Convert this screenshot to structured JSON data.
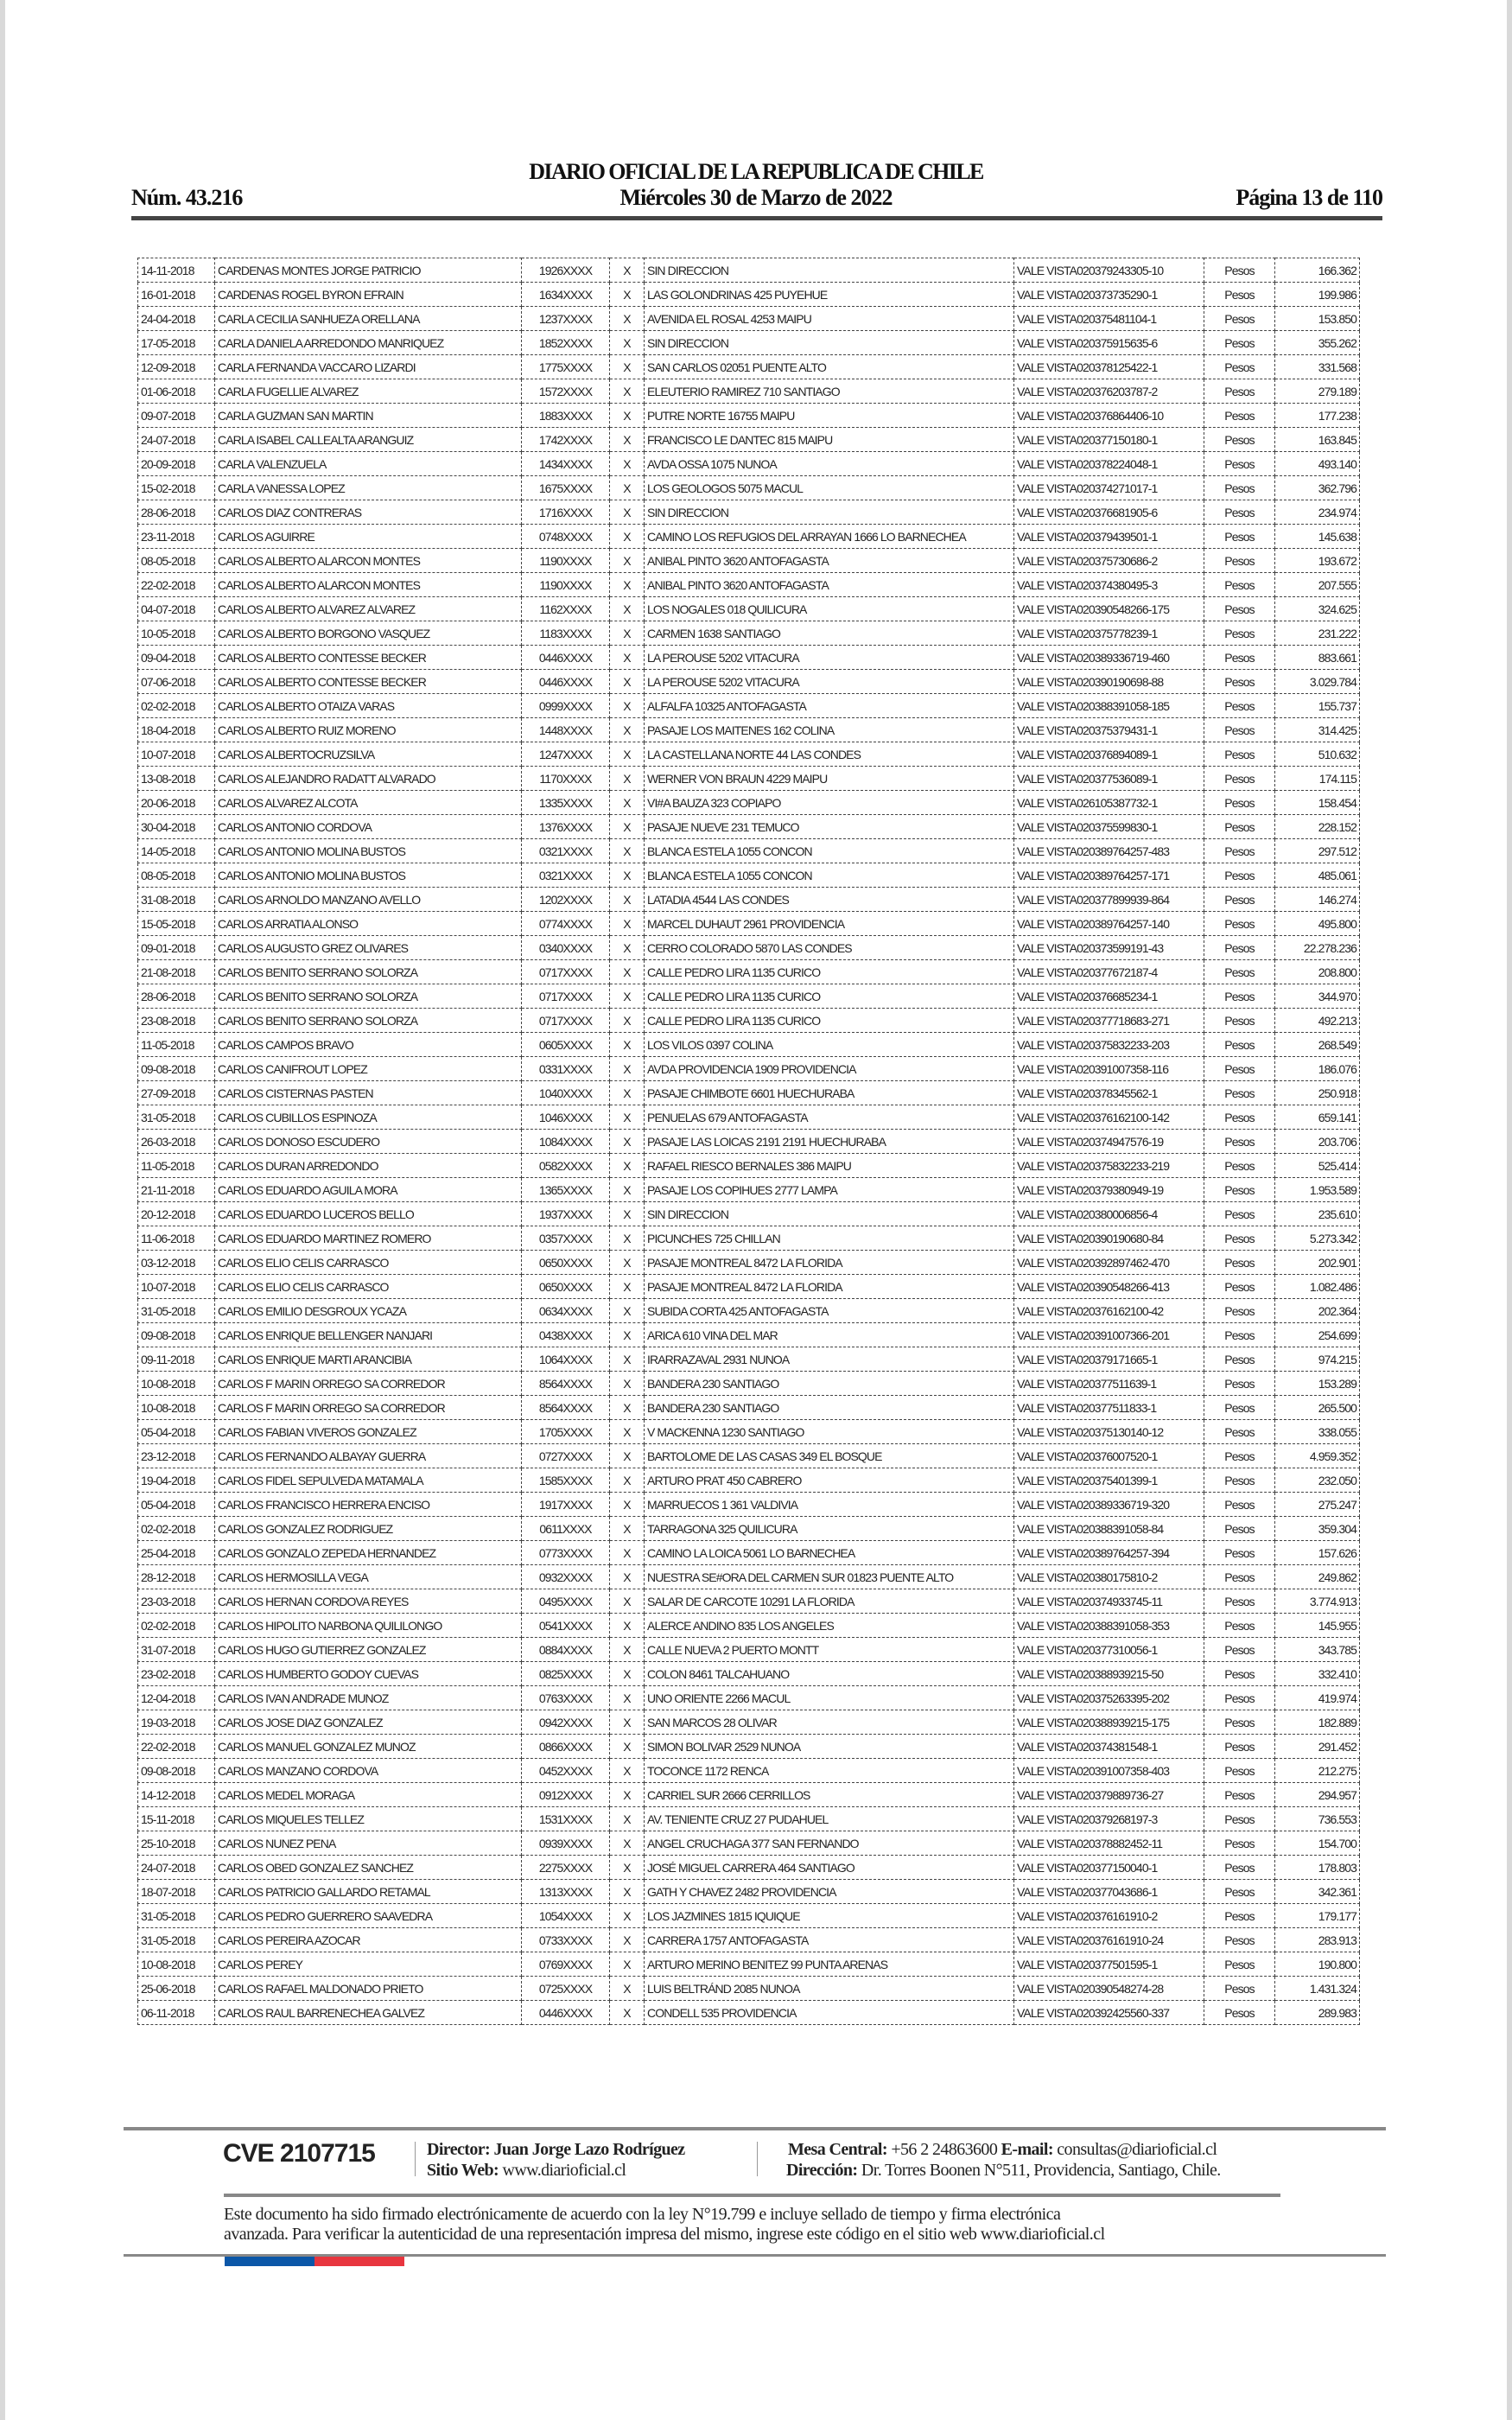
{
  "header": {
    "title": "DIARIO OFICIAL DE LA REPUBLICA DE CHILE",
    "number": "Núm. 43.216",
    "date": "Miércoles 30 de Marzo de 2022",
    "page": "Página 13 de 110"
  },
  "rows": [
    [
      "14-11-2018",
      "CARDENAS MONTES JORGE PATRICIO",
      "1926XXXX",
      "X",
      "SIN DIRECCION",
      "VALE VISTA020379243305-10",
      "Pesos",
      "166.362"
    ],
    [
      "16-01-2018",
      "CARDENAS ROGEL BYRON EFRAIN",
      "1634XXXX",
      "X",
      "LAS GOLONDRINAS 425 PUYEHUE",
      "VALE VISTA020373735290-1",
      "Pesos",
      "199.986"
    ],
    [
      "24-04-2018",
      "CARLA CECILIA SANHUEZA ORELLANA",
      "1237XXXX",
      "X",
      "AVENIDA EL ROSAL 4253 MAIPU",
      "VALE VISTA020375481104-1",
      "Pesos",
      "153.850"
    ],
    [
      "17-05-2018",
      "CARLA DANIELA ARREDONDO MANRIQUEZ",
      "1852XXXX",
      "X",
      "SIN DIRECCION",
      "VALE VISTA020375915635-6",
      "Pesos",
      "355.262"
    ],
    [
      "12-09-2018",
      "CARLA FERNANDA VACCARO LIZARDI",
      "1775XXXX",
      "X",
      "SAN CARLOS 02051 PUENTE ALTO",
      "VALE VISTA020378125422-1",
      "Pesos",
      "331.568"
    ],
    [
      "01-06-2018",
      "CARLA FUGELLIE ALVAREZ",
      "1572XXXX",
      "X",
      "ELEUTERIO RAMIREZ 710 SANTIAGO",
      "VALE VISTA020376203787-2",
      "Pesos",
      "279.189"
    ],
    [
      "09-07-2018",
      "CARLA GUZMAN SAN MARTIN",
      "1883XXXX",
      "X",
      "PUTRE NORTE 16755 MAIPU",
      "VALE VISTA020376864406-10",
      "Pesos",
      "177.238"
    ],
    [
      "24-07-2018",
      "CARLA ISABEL CALLEALTA ARANGUIZ",
      "1742XXXX",
      "X",
      "FRANCISCO LE DANTEC 815 MAIPU",
      "VALE VISTA020377150180-1",
      "Pesos",
      "163.845"
    ],
    [
      "20-09-2018",
      "CARLA VALENZUELA",
      "1434XXXX",
      "X",
      "AVDA OSSA 1075 NUNOA",
      "VALE VISTA020378224048-1",
      "Pesos",
      "493.140"
    ],
    [
      "15-02-2018",
      "CARLA VANESSA LOPEZ",
      "1675XXXX",
      "X",
      "LOS GEOLOGOS 5075 MACUL",
      "VALE VISTA020374271017-1",
      "Pesos",
      "362.796"
    ],
    [
      "28-06-2018",
      "CARLOS DIAZ CONTRERAS",
      "1716XXXX",
      "X",
      "SIN DIRECCION",
      "VALE VISTA020376681905-6",
      "Pesos",
      "234.974"
    ],
    [
      "23-11-2018",
      "CARLOS AGUIRRE",
      "0748XXXX",
      "X",
      "CAMINO LOS REFUGIOS DEL ARRAYAN 1666 LO BARNECHEA",
      "VALE VISTA020379439501-1",
      "Pesos",
      "145.638"
    ],
    [
      "08-05-2018",
      "CARLOS ALBERTO ALARCON MONTES",
      "1190XXXX",
      "X",
      "ANIBAL PINTO 3620 ANTOFAGASTA",
      "VALE VISTA020375730686-2",
      "Pesos",
      "193.672"
    ],
    [
      "22-02-2018",
      "CARLOS ALBERTO ALARCON MONTES",
      "1190XXXX",
      "X",
      "ANIBAL PINTO 3620 ANTOFAGASTA",
      "VALE VISTA020374380495-3",
      "Pesos",
      "207.555"
    ],
    [
      "04-07-2018",
      "CARLOS ALBERTO ALVAREZ ALVAREZ",
      "1162XXXX",
      "X",
      "LOS NOGALES 018 QUILICURA",
      "VALE VISTA020390548266-175",
      "Pesos",
      "324.625"
    ],
    [
      "10-05-2018",
      "CARLOS ALBERTO BORGONO VASQUEZ",
      "1183XXXX",
      "X",
      "CARMEN 1638 SANTIAGO",
      "VALE VISTA020375778239-1",
      "Pesos",
      "231.222"
    ],
    [
      "09-04-2018",
      "CARLOS ALBERTO CONTESSE BECKER",
      "0446XXXX",
      "X",
      "LA PEROUSE 5202 VITACURA",
      "VALE VISTA020389336719-460",
      "Pesos",
      "883.661"
    ],
    [
      "07-06-2018",
      "CARLOS ALBERTO CONTESSE BECKER",
      "0446XXXX",
      "X",
      "LA PEROUSE 5202 VITACURA",
      "VALE VISTA020390190698-88",
      "Pesos",
      "3.029.784"
    ],
    [
      "02-02-2018",
      "CARLOS ALBERTO OTAIZA VARAS",
      "0999XXXX",
      "X",
      "ALFALFA 10325 ANTOFAGASTA",
      "VALE VISTA020388391058-185",
      "Pesos",
      "155.737"
    ],
    [
      "18-04-2018",
      "CARLOS ALBERTO RUIZ MORENO",
      "1448XXXX",
      "X",
      "PASAJE LOS MAITENES 162 COLINA",
      "VALE VISTA020375379431-1",
      "Pesos",
      "314.425"
    ],
    [
      "10-07-2018",
      "CARLOS ALBERTOCRUZSILVA",
      "1247XXXX",
      "X",
      "LA CASTELLANA NORTE 44 LAS CONDES",
      "VALE VISTA020376894089-1",
      "Pesos",
      "510.632"
    ],
    [
      "13-08-2018",
      "CARLOS ALEJANDRO RADATT ALVARADO",
      "1170XXXX",
      "X",
      "WERNER VON BRAUN 4229 MAIPU",
      "VALE VISTA020377536089-1",
      "Pesos",
      "174.115"
    ],
    [
      "20-06-2018",
      "CARLOS ALVAREZ ALCOTA",
      "1335XXXX",
      "X",
      "VI#A BAUZA 323 COPIAPO",
      "VALE VISTA026105387732-1",
      "Pesos",
      "158.454"
    ],
    [
      "30-04-2018",
      "CARLOS ANTONIO CORDOVA",
      "1376XXXX",
      "X",
      "PASAJE NUEVE 231 TEMUCO",
      "VALE VISTA020375599830-1",
      "Pesos",
      "228.152"
    ],
    [
      "14-05-2018",
      "CARLOS ANTONIO MOLINA BUSTOS",
      "0321XXXX",
      "X",
      "BLANCA ESTELA 1055 CONCON",
      "VALE VISTA020389764257-483",
      "Pesos",
      "297.512"
    ],
    [
      "08-05-2018",
      "CARLOS ANTONIO MOLINA BUSTOS",
      "0321XXXX",
      "X",
      "BLANCA ESTELA 1055 CONCON",
      "VALE VISTA020389764257-171",
      "Pesos",
      "485.061"
    ],
    [
      "31-08-2018",
      "CARLOS ARNOLDO MANZANO AVELLO",
      "1202XXXX",
      "X",
      "LATADIA 4544 LAS CONDES",
      "VALE VISTA020377899939-864",
      "Pesos",
      "146.274"
    ],
    [
      "15-05-2018",
      "CARLOS ARRATIA ALONSO",
      "0774XXXX",
      "X",
      "MARCEL DUHAUT 2961 PROVIDENCIA",
      "VALE VISTA020389764257-140",
      "Pesos",
      "495.800"
    ],
    [
      "09-01-2018",
      "CARLOS AUGUSTO GREZ OLIVARES",
      "0340XXXX",
      "X",
      "CERRO COLORADO 5870 LAS CONDES",
      "VALE VISTA020373599191-43",
      "Pesos",
      "22.278.236"
    ],
    [
      "21-08-2018",
      "CARLOS BENITO SERRANO SOLORZA",
      "0717XXXX",
      "X",
      "CALLE PEDRO LIRA 1135 CURICO",
      "VALE VISTA020377672187-4",
      "Pesos",
      "208.800"
    ],
    [
      "28-06-2018",
      "CARLOS BENITO SERRANO SOLORZA",
      "0717XXXX",
      "X",
      "CALLE PEDRO LIRA 1135 CURICO",
      "VALE VISTA020376685234-1",
      "Pesos",
      "344.970"
    ],
    [
      "23-08-2018",
      "CARLOS BENITO SERRANO SOLORZA",
      "0717XXXX",
      "X",
      "CALLE PEDRO LIRA 1135 CURICO",
      "VALE VISTA020377718683-271",
      "Pesos",
      "492.213"
    ],
    [
      "11-05-2018",
      "CARLOS CAMPOS BRAVO",
      "0605XXXX",
      "X",
      "LOS VILOS 0397 COLINA",
      "VALE VISTA020375832233-203",
      "Pesos",
      "268.549"
    ],
    [
      "09-08-2018",
      "CARLOS CANIFROUT LOPEZ",
      "0331XXXX",
      "X",
      "AVDA PROVIDENCIA 1909 PROVIDENCIA",
      "VALE VISTA020391007358-116",
      "Pesos",
      "186.076"
    ],
    [
      "27-09-2018",
      "CARLOS CISTERNAS PASTEN",
      "1040XXXX",
      "X",
      "PASAJE CHIMBOTE 6601 HUECHURABA",
      "VALE VISTA020378345562-1",
      "Pesos",
      "250.918"
    ],
    [
      "31-05-2018",
      "CARLOS CUBILLOS ESPINOZA",
      "1046XXXX",
      "X",
      "PENUELAS 679 ANTOFAGASTA",
      "VALE VISTA020376162100-142",
      "Pesos",
      "659.141"
    ],
    [
      "26-03-2018",
      "CARLOS DONOSO ESCUDERO",
      "1084XXXX",
      "X",
      "PASAJE LAS LOICAS 2191 2191 HUECHURABA",
      "VALE VISTA020374947576-19",
      "Pesos",
      "203.706"
    ],
    [
      "11-05-2018",
      "CARLOS DURAN ARREDONDO",
      "0582XXXX",
      "X",
      "RAFAEL RIESCO BERNALES 386 MAIPU",
      "VALE VISTA020375832233-219",
      "Pesos",
      "525.414"
    ],
    [
      "21-11-2018",
      "CARLOS EDUARDO AGUILA MORA",
      "1365XXXX",
      "X",
      "PASAJE LOS COPIHUES 2777 LAMPA",
      "VALE VISTA020379380949-19",
      "Pesos",
      "1.953.589"
    ],
    [
      "20-12-2018",
      "CARLOS EDUARDO LUCEROS BELLO",
      "1937XXXX",
      "X",
      "SIN DIRECCION",
      "VALE VISTA020380006856-4",
      "Pesos",
      "235.610"
    ],
    [
      "11-06-2018",
      "CARLOS EDUARDO MARTINEZ ROMERO",
      "0357XXXX",
      "X",
      "PICUNCHES 725 CHILLAN",
      "VALE VISTA020390190680-84",
      "Pesos",
      "5.273.342"
    ],
    [
      "03-12-2018",
      "CARLOS ELIO CELIS CARRASCO",
      "0650XXXX",
      "X",
      "PASAJE MONTREAL 8472 LA FLORIDA",
      "VALE VISTA020392897462-470",
      "Pesos",
      "202.901"
    ],
    [
      "10-07-2018",
      "CARLOS ELIO CELIS CARRASCO",
      "0650XXXX",
      "X",
      "PASAJE MONTREAL 8472 LA FLORIDA",
      "VALE VISTA020390548266-413",
      "Pesos",
      "1.082.486"
    ],
    [
      "31-05-2018",
      "CARLOS EMILIO DESGROUX YCAZA",
      "0634XXXX",
      "X",
      "SUBIDA CORTA 425 ANTOFAGASTA",
      "VALE VISTA020376162100-42",
      "Pesos",
      "202.364"
    ],
    [
      "09-08-2018",
      "CARLOS ENRIQUE BELLENGER NANJARI",
      "0438XXXX",
      "X",
      "ARICA 610 VINA DEL MAR",
      "VALE VISTA020391007366-201",
      "Pesos",
      "254.699"
    ],
    [
      "09-11-2018",
      "CARLOS ENRIQUE MARTI ARANCIBIA",
      "1064XXXX",
      "X",
      "IRARRAZAVAL 2931 NUNOA",
      "VALE VISTA020379171665-1",
      "Pesos",
      "974.215"
    ],
    [
      "10-08-2018",
      "CARLOS F MARIN ORREGO SA CORREDOR",
      "8564XXXX",
      "X",
      "BANDERA 230 SANTIAGO",
      "VALE VISTA020377511639-1",
      "Pesos",
      "153.289"
    ],
    [
      "10-08-2018",
      "CARLOS F MARIN ORREGO SA CORREDOR",
      "8564XXXX",
      "X",
      "BANDERA 230 SANTIAGO",
      "VALE VISTA020377511833-1",
      "Pesos",
      "265.500"
    ],
    [
      "05-04-2018",
      "CARLOS FABIAN VIVEROS GONZALEZ",
      "1705XXXX",
      "X",
      "V MACKENNA 1230 SANTIAGO",
      "VALE VISTA020375130140-12",
      "Pesos",
      "338.055"
    ],
    [
      "23-12-2018",
      "CARLOS FERNANDO ALBAYAY GUERRA",
      "0727XXXX",
      "X",
      "BARTOLOME DE LAS CASAS 349 EL BOSQUE",
      "VALE VISTA020376007520-1",
      "Pesos",
      "4.959.352"
    ],
    [
      "19-04-2018",
      "CARLOS FIDEL SEPULVEDA MATAMALA",
      "1585XXXX",
      "X",
      "ARTURO PRAT 450 CABRERO",
      "VALE VISTA020375401399-1",
      "Pesos",
      "232.050"
    ],
    [
      "05-04-2018",
      "CARLOS FRANCISCO HERRERA ENCISO",
      "1917XXXX",
      "X",
      "MARRUECOS 1 361 VALDIVIA",
      "VALE VISTA020389336719-320",
      "Pesos",
      "275.247"
    ],
    [
      "02-02-2018",
      "CARLOS GONZALEZ RODRIGUEZ",
      "0611XXXX",
      "X",
      "TARRAGONA 325 QUILICURA",
      "VALE VISTA020388391058-84",
      "Pesos",
      "359.304"
    ],
    [
      "25-04-2018",
      "CARLOS GONZALO ZEPEDA HERNANDEZ",
      "0773XXXX",
      "X",
      "CAMINO LA LOICA 5061 LO BARNECHEA",
      "VALE VISTA020389764257-394",
      "Pesos",
      "157.626"
    ],
    [
      "28-12-2018",
      "CARLOS HERMOSILLA VEGA",
      "0932XXXX",
      "X",
      "NUESTRA SE#ORA DEL CARMEN SUR 01823 PUENTE ALTO",
      "VALE VISTA020380175810-2",
      "Pesos",
      "249.862"
    ],
    [
      "23-03-2018",
      "CARLOS HERNAN CORDOVA REYES",
      "0495XXXX",
      "X",
      "SALAR DE CARCOTE 10291 LA FLORIDA",
      "VALE VISTA020374933745-11",
      "Pesos",
      "3.774.913"
    ],
    [
      "02-02-2018",
      "CARLOS HIPOLITO NARBONA QUILILONGO",
      "0541XXXX",
      "X",
      "ALERCE ANDINO 835 LOS ANGELES",
      "VALE VISTA020388391058-353",
      "Pesos",
      "145.955"
    ],
    [
      "31-07-2018",
      "CARLOS HUGO GUTIERREZ GONZALEZ",
      "0884XXXX",
      "X",
      "CALLE NUEVA 2 PUERTO MONTT",
      "VALE VISTA020377310056-1",
      "Pesos",
      "343.785"
    ],
    [
      "23-02-2018",
      "CARLOS HUMBERTO GODOY CUEVAS",
      "0825XXXX",
      "X",
      "COLON 8461 TALCAHUANO",
      "VALE VISTA020388939215-50",
      "Pesos",
      "332.410"
    ],
    [
      "12-04-2018",
      "CARLOS IVAN ANDRADE MUNOZ",
      "0763XXXX",
      "X",
      "UNO ORIENTE 2266 MACUL",
      "VALE VISTA020375263395-202",
      "Pesos",
      "419.974"
    ],
    [
      "19-03-2018",
      "CARLOS JOSE DIAZ GONZALEZ",
      "0942XXXX",
      "X",
      "SAN MARCOS 28 OLIVAR",
      "VALE VISTA020388939215-175",
      "Pesos",
      "182.889"
    ],
    [
      "22-02-2018",
      "CARLOS MANUEL GONZALEZ MUNOZ",
      "0866XXXX",
      "X",
      "SIMON BOLIVAR 2529 NUNOA",
      "VALE VISTA020374381548-1",
      "Pesos",
      "291.452"
    ],
    [
      "09-08-2018",
      "CARLOS MANZANO CORDOVA",
      "0452XXXX",
      "X",
      "TOCONCE 1172 RENCA",
      "VALE VISTA020391007358-403",
      "Pesos",
      "212.275"
    ],
    [
      "14-12-2018",
      "CARLOS MEDEL MORAGA",
      "0912XXXX",
      "X",
      "CARRIEL SUR 2666 CERRILLOS",
      "VALE VISTA020379889736-27",
      "Pesos",
      "294.957"
    ],
    [
      "15-11-2018",
      "CARLOS MIQUELES TELLEZ",
      "1531XXXX",
      "X",
      "AV. TENIENTE CRUZ 27 PUDAHUEL",
      "VALE VISTA020379268197-3",
      "Pesos",
      "736.553"
    ],
    [
      "25-10-2018",
      "CARLOS NUNEZ PENA",
      "0939XXXX",
      "X",
      "ANGEL CRUCHAGA 377 SAN FERNANDO",
      "VALE VISTA020378882452-11",
      "Pesos",
      "154.700"
    ],
    [
      "24-07-2018",
      "CARLOS OBED GONZALEZ SANCHEZ",
      "2275XXXX",
      "X",
      "JOSÉ MIGUEL CARRERA 464 SANTIAGO",
      "VALE VISTA020377150040-1",
      "Pesos",
      "178.803"
    ],
    [
      "18-07-2018",
      "CARLOS PATRICIO GALLARDO RETAMAL",
      "1313XXXX",
      "X",
      "GATH Y CHAVEZ 2482 PROVIDENCIA",
      "VALE VISTA020377043686-1",
      "Pesos",
      "342.361"
    ],
    [
      "31-05-2018",
      "CARLOS PEDRO GUERRERO SAAVEDRA",
      "1054XXXX",
      "X",
      "LOS JAZMINES 1815 IQUIQUE",
      "VALE VISTA020376161910-2",
      "Pesos",
      "179.177"
    ],
    [
      "31-05-2018",
      "CARLOS PEREIRA AZOCAR",
      "0733XXXX",
      "X",
      "CARRERA 1757 ANTOFAGASTA",
      "VALE VISTA020376161910-24",
      "Pesos",
      "283.913"
    ],
    [
      "10-08-2018",
      "CARLOS PEREY",
      "0769XXXX",
      "X",
      "ARTURO MERINO BENITEZ 99 PUNTA ARENAS",
      "VALE VISTA020377501595-1",
      "Pesos",
      "190.800"
    ],
    [
      "25-06-2018",
      "CARLOS RAFAEL MALDONADO PRIETO",
      "0725XXXX",
      "X",
      "LUIS BELTRÁND 2085 NUNOA",
      "VALE VISTA020390548274-28",
      "Pesos",
      "1.431.324"
    ],
    [
      "06-11-2018",
      "CARLOS RAUL BARRENECHEA GALVEZ",
      "0446XXXX",
      "X",
      "CONDELL 535 PROVIDENCIA",
      "VALE VISTA020392425560-337",
      "Pesos",
      "289.983"
    ]
  ],
  "footer": {
    "cve": "CVE 2107715",
    "director_label": "Director:",
    "director": "Juan Jorge Lazo Rodríguez",
    "web_label": "Sitio Web:",
    "web": "www.diarioficial.cl",
    "phone_label": "Mesa Central:",
    "phone": "+56 2 24863600",
    "email_label": "E-mail:",
    "email": "consultas@diarioficial.cl",
    "address_label": "Dirección:",
    "address": "Dr. Torres Boonen N°511, Providencia, Santiago, Chile.",
    "notice_line1": "Este documento ha sido firmado electrónicamente de acuerdo con la ley N°19.799 e incluye sellado de tiempo y firma electrónica",
    "notice_line2": "avanzada. Para verificar la autenticidad de una representación impresa del mismo, ingrese este código en el sitio web www.diarioficial.cl",
    "flag_colors": [
      "#0b57a8",
      "#e8363f"
    ]
  }
}
